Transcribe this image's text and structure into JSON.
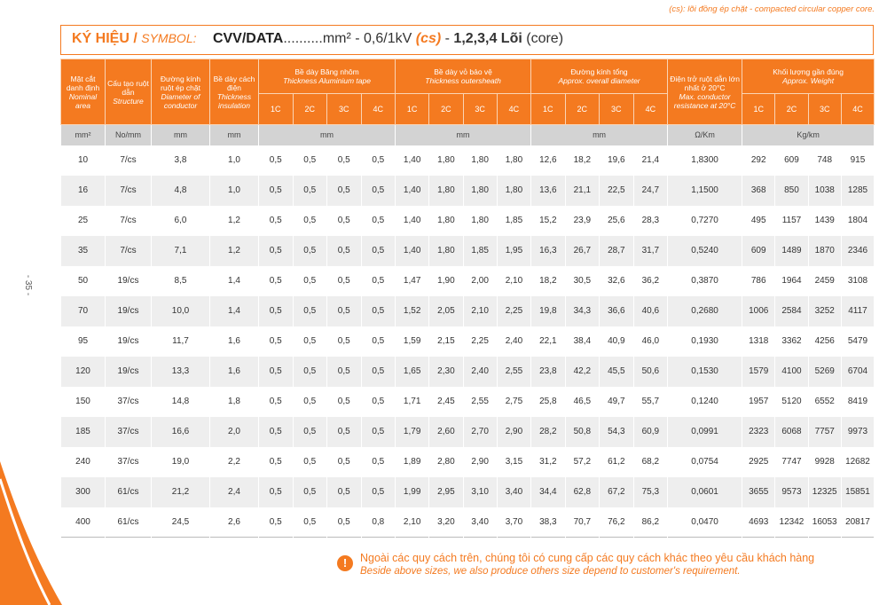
{
  "note": "(cs): lõi đồng ép chặt - compacted circular copper core.",
  "page_number": "- 35 -",
  "symbol": {
    "label": "KÝ HIỆU /",
    "label_en": "SYMBOL:",
    "code": "CVV/DATA",
    "spec": "..........mm² - 0,6/1kV",
    "cs": "(cs)",
    "dash": "-",
    "cores": "1,2,3,4 Lõi",
    "cores_en": "(core)"
  },
  "table": {
    "columns": [
      {
        "vi": "Mặt cắt danh định",
        "en": "Nominal area"
      },
      {
        "vi": "Cấu tạo ruột dẫn",
        "en": "Structure"
      },
      {
        "vi": "Đường kính ruột ép chặt",
        "en": "Diameter of conductor"
      },
      {
        "vi": "Bề dày cách điện",
        "en": "Thickness insulation"
      },
      {
        "vi": "Bề dày Băng nhôm",
        "en": "Thickness Aluminium tape",
        "sub": [
          "1C",
          "2C",
          "3C",
          "4C"
        ]
      },
      {
        "vi": "Bề dày vỏ bảo vệ",
        "en": "Thickness outersheath",
        "sub": [
          "1C",
          "2C",
          "3C",
          "4C"
        ]
      },
      {
        "vi": "Đường kính tổng",
        "en": "Approx. overall diameter",
        "sub": [
          "1C",
          "2C",
          "3C",
          "4C"
        ]
      },
      {
        "vi": "Điện trở ruột dẫn lớn nhất ở 20°C",
        "en": "Max. conductor resistance at 20°C"
      },
      {
        "vi": "Khối lượng gần đúng",
        "en": "Approx. Weight",
        "sub": [
          "1C",
          "2C",
          "3C",
          "4C"
        ]
      }
    ],
    "units": [
      "mm²",
      "No/mm",
      "mm",
      "mm",
      "mm",
      "mm",
      "mm",
      "Ω/Km",
      "Kg/km"
    ],
    "rows": [
      [
        "10",
        "7/cs",
        "3,8",
        "1,0",
        "0,5",
        "0,5",
        "0,5",
        "0,5",
        "1,40",
        "1,80",
        "1,80",
        "1,80",
        "12,6",
        "18,2",
        "19,6",
        "21,4",
        "1,8300",
        "292",
        "609",
        "748",
        "915"
      ],
      [
        "16",
        "7/cs",
        "4,8",
        "1,0",
        "0,5",
        "0,5",
        "0,5",
        "0,5",
        "1,40",
        "1,80",
        "1,80",
        "1,80",
        "13,6",
        "21,1",
        "22,5",
        "24,7",
        "1,1500",
        "368",
        "850",
        "1038",
        "1285"
      ],
      [
        "25",
        "7/cs",
        "6,0",
        "1,2",
        "0,5",
        "0,5",
        "0,5",
        "0,5",
        "1,40",
        "1,80",
        "1,80",
        "1,85",
        "15,2",
        "23,9",
        "25,6",
        "28,3",
        "0,7270",
        "495",
        "1157",
        "1439",
        "1804"
      ],
      [
        "35",
        "7/cs",
        "7,1",
        "1,2",
        "0,5",
        "0,5",
        "0,5",
        "0,5",
        "1,40",
        "1,80",
        "1,85",
        "1,95",
        "16,3",
        "26,7",
        "28,7",
        "31,7",
        "0,5240",
        "609",
        "1489",
        "1870",
        "2346"
      ],
      [
        "50",
        "19/cs",
        "8,5",
        "1,4",
        "0,5",
        "0,5",
        "0,5",
        "0,5",
        "1,47",
        "1,90",
        "2,00",
        "2,10",
        "18,2",
        "30,5",
        "32,6",
        "36,2",
        "0,3870",
        "786",
        "1964",
        "2459",
        "3108"
      ],
      [
        "70",
        "19/cs",
        "10,0",
        "1,4",
        "0,5",
        "0,5",
        "0,5",
        "0,5",
        "1,52",
        "2,05",
        "2,10",
        "2,25",
        "19,8",
        "34,3",
        "36,6",
        "40,6",
        "0,2680",
        "1006",
        "2584",
        "3252",
        "4117"
      ],
      [
        "95",
        "19/cs",
        "11,7",
        "1,6",
        "0,5",
        "0,5",
        "0,5",
        "0,5",
        "1,59",
        "2,15",
        "2,25",
        "2,40",
        "22,1",
        "38,4",
        "40,9",
        "46,0",
        "0,1930",
        "1318",
        "3362",
        "4256",
        "5479"
      ],
      [
        "120",
        "19/cs",
        "13,3",
        "1,6",
        "0,5",
        "0,5",
        "0,5",
        "0,5",
        "1,65",
        "2,30",
        "2,40",
        "2,55",
        "23,8",
        "42,2",
        "45,5",
        "50,6",
        "0,1530",
        "1579",
        "4100",
        "5269",
        "6704"
      ],
      [
        "150",
        "37/cs",
        "14,8",
        "1,8",
        "0,5",
        "0,5",
        "0,5",
        "0,5",
        "1,71",
        "2,45",
        "2,55",
        "2,75",
        "25,8",
        "46,5",
        "49,7",
        "55,7",
        "0,1240",
        "1957",
        "5120",
        "6552",
        "8419"
      ],
      [
        "185",
        "37/cs",
        "16,6",
        "2,0",
        "0,5",
        "0,5",
        "0,5",
        "0,5",
        "1,79",
        "2,60",
        "2,70",
        "2,90",
        "28,2",
        "50,8",
        "54,3",
        "60,9",
        "0,0991",
        "2323",
        "6068",
        "7757",
        "9973"
      ],
      [
        "240",
        "37/cs",
        "19,0",
        "2,2",
        "0,5",
        "0,5",
        "0,5",
        "0,5",
        "1,89",
        "2,80",
        "2,90",
        "3,15",
        "31,2",
        "57,2",
        "61,2",
        "68,2",
        "0,0754",
        "2925",
        "7747",
        "9928",
        "12682"
      ],
      [
        "300",
        "61/cs",
        "21,2",
        "2,4",
        "0,5",
        "0,5",
        "0,5",
        "0,5",
        "1,99",
        "2,95",
        "3,10",
        "3,40",
        "34,4",
        "62,8",
        "67,2",
        "75,3",
        "0,0601",
        "3655",
        "9573",
        "12325",
        "15851"
      ],
      [
        "400",
        "61/cs",
        "24,5",
        "2,6",
        "0,5",
        "0,5",
        "0,5",
        "0,8",
        "2,10",
        "3,20",
        "3,40",
        "3,70",
        "38,3",
        "70,7",
        "76,2",
        "86,2",
        "0,0470",
        "4693",
        "12342",
        "16053",
        "20817"
      ]
    ]
  },
  "footer": {
    "vi": "Ngoài các quy cách trên, chúng tôi có cung cấp các quy cách khác theo yêu cầu khách hàng",
    "en": "Beside above sizes, we also produce others size depend to customer's requirement."
  }
}
